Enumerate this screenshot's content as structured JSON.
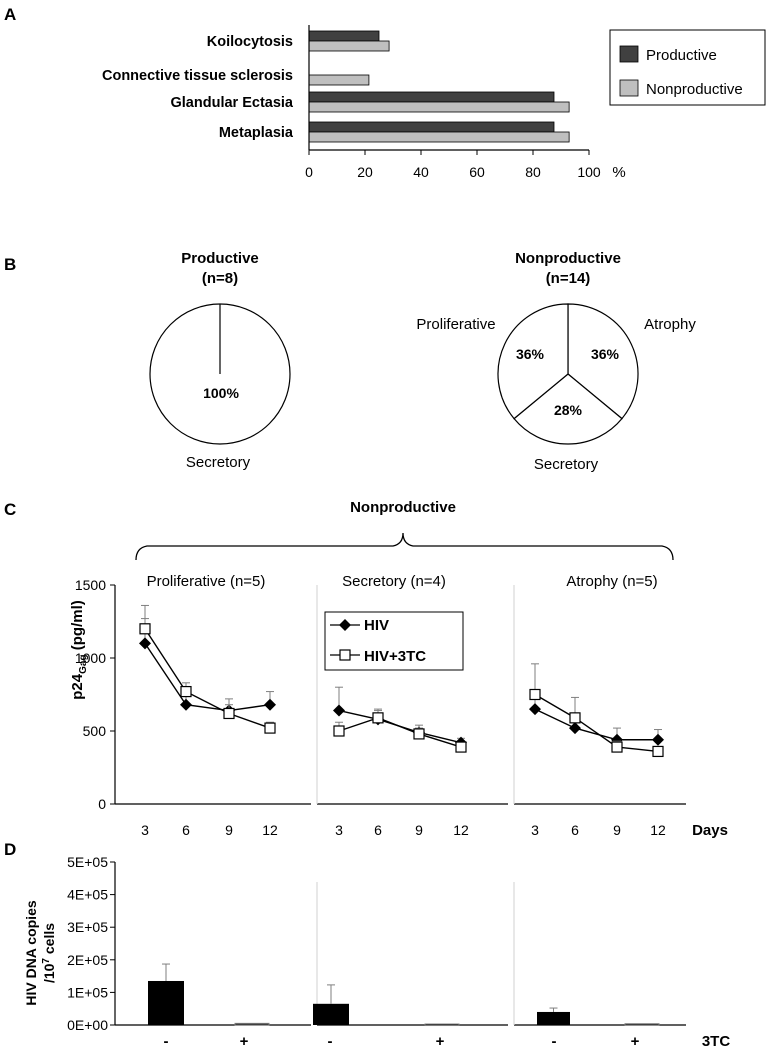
{
  "panels": {
    "a": "A",
    "b": "B",
    "c": "C",
    "d": "D"
  },
  "chart_data": [
    {
      "type": "bar",
      "orientation": "horizontal",
      "categories": [
        "Koilocytosis",
        "Connective tissue sclerosis",
        "Glandular Ectasia",
        "Metaplasia"
      ],
      "series": [
        {
          "name": "Productive",
          "color": "#404040",
          "values": [
            25,
            0,
            87.5,
            87.5
          ]
        },
        {
          "name": "Nonproductive",
          "color": "#bfbfbf",
          "values": [
            28.6,
            21.4,
            92.9,
            92.9
          ]
        }
      ],
      "xticks": [
        "0",
        "20",
        "40",
        "60",
        "80",
        "100"
      ],
      "xlim": [
        0,
        100
      ],
      "xlabel": "%",
      "legend": "right"
    },
    {
      "type": "pie",
      "title": "Productive",
      "subtitle": "(n=8)",
      "slices": [
        {
          "label": "Secretory",
          "value": 100,
          "text": "100%"
        }
      ]
    },
    {
      "type": "pie",
      "title": "Nonproductive",
      "subtitle": "(n=14)",
      "slices": [
        {
          "label": "Atrophy",
          "value": 36,
          "text": "36%"
        },
        {
          "label": "Secretory",
          "value": 28,
          "text": "28%"
        },
        {
          "label": "Proliferative",
          "value": 36,
          "text": "36%"
        }
      ]
    },
    {
      "type": "line",
      "group_title": "Nonproductive",
      "ylabel": "p24",
      "ylabel_sub": "Gag",
      "ylabel_unit": " (pg/ml)",
      "ylim": [
        0,
        1500
      ],
      "yticks": [
        "0",
        "500",
        "1000",
        "1500"
      ],
      "x": [
        "3",
        "6",
        "9",
        "12"
      ],
      "xlabel": "Days",
      "legend": [
        "HIV",
        "HIV+3TC"
      ],
      "groups": [
        {
          "name": "Proliferative (n=5)",
          "series": [
            {
              "name": "HIV",
              "values": [
                1100,
                680,
                640,
                680
              ],
              "err": [
                170,
                80,
                80,
                90
              ]
            },
            {
              "name": "HIV+3TC",
              "values": [
                1200,
                770,
                620,
                520
              ],
              "err": [
                160,
                60,
                60,
                40
              ]
            }
          ]
        },
        {
          "name": "Secretory (n=4)",
          "series": [
            {
              "name": "HIV",
              "values": [
                640,
                580,
                490,
                420
              ],
              "err": [
                160,
                60,
                50,
                30
              ]
            },
            {
              "name": "HIV+3TC",
              "values": [
                500,
                590,
                480,
                390
              ],
              "err": [
                60,
                60,
                40,
                30
              ]
            }
          ]
        },
        {
          "name": "Atrophy (n=5)",
          "series": [
            {
              "name": "HIV",
              "values": [
                650,
                520,
                440,
                440
              ],
              "err": [
                130,
                70,
                80,
                70
              ]
            },
            {
              "name": "HIV+3TC",
              "values": [
                750,
                590,
                390,
                360
              ],
              "err": [
                210,
                140,
                40,
                30
              ]
            }
          ]
        }
      ]
    },
    {
      "type": "bar",
      "ylabel": "HIV DNA copies",
      "ylabel2": "/10",
      "ylabel2_sup": "7",
      "ylabel2_end": " cells",
      "ylim": [
        0,
        500000
      ],
      "yticks": [
        "0E+00",
        "1E+05",
        "2E+05",
        "3E+05",
        "4E+05",
        "5E+05"
      ],
      "xlabel": "3TC",
      "categories": [
        "-",
        "+"
      ],
      "groups": [
        {
          "values": [
            135000,
            5000
          ],
          "err": [
            52000,
            0
          ]
        },
        {
          "values": [
            65000,
            3000
          ],
          "err": [
            58000,
            0
          ]
        },
        {
          "values": [
            40000,
            4000
          ],
          "err": [
            12000,
            0
          ]
        }
      ]
    }
  ]
}
